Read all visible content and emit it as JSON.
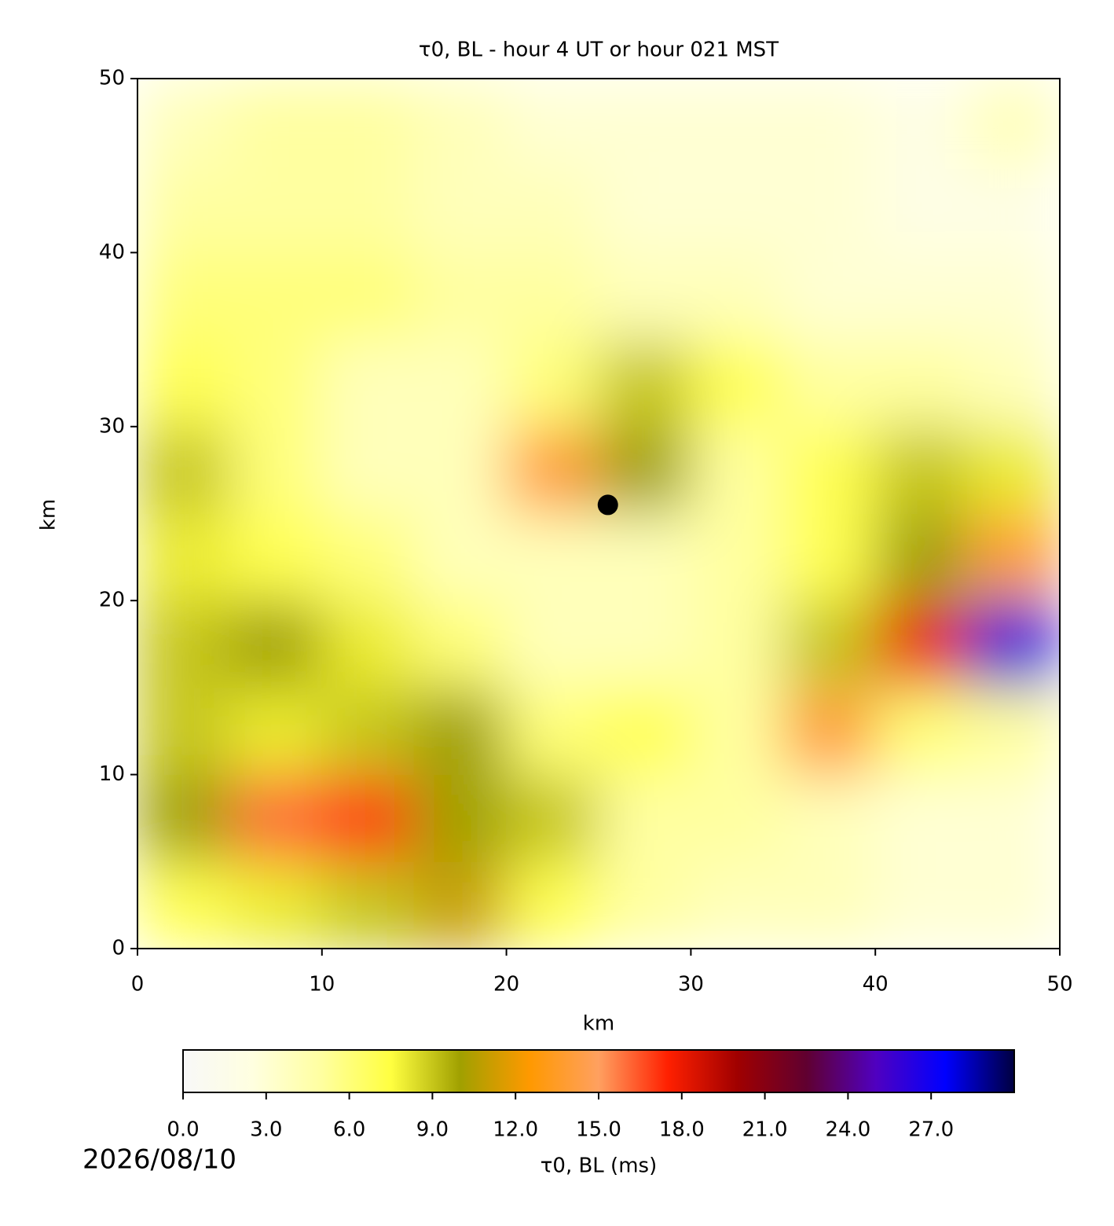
{
  "chart_data": {
    "type": "heatmap",
    "title": "τ0, BL - hour 4 UT or hour 021 MST",
    "x_label": "km",
    "y_label": "km",
    "xlim": [
      0,
      50
    ],
    "ylim": [
      0,
      50
    ],
    "xticks": [
      0,
      10,
      20,
      30,
      40,
      50
    ],
    "yticks": [
      0,
      10,
      20,
      30,
      40,
      50
    ],
    "x": [
      2.5,
      7.5,
      12.5,
      17.5,
      22.5,
      27.5,
      32.5,
      37.5,
      42.5,
      47.5
    ],
    "y": [
      2.5,
      7.5,
      12.5,
      17.5,
      22.5,
      27.5,
      32.5,
      37.5,
      42.5,
      47.5
    ],
    "z": [
      [
        7,
        8,
        9,
        11,
        7,
        5,
        4,
        4,
        3,
        3
      ],
      [
        10,
        16,
        17,
        10,
        9,
        5,
        5,
        4,
        3,
        3
      ],
      [
        9,
        8,
        9,
        10,
        6,
        7,
        5,
        14,
        6,
        5
      ],
      [
        9,
        10,
        8,
        6,
        4,
        4,
        5,
        9,
        18,
        26
      ],
      [
        8,
        7,
        6,
        4,
        4,
        4,
        5,
        7,
        10,
        14
      ],
      [
        9,
        6,
        4,
        4,
        14,
        10,
        5,
        7,
        9,
        8
      ],
      [
        7,
        6,
        4,
        4,
        6,
        9,
        7,
        5,
        5,
        4
      ],
      [
        6,
        6,
        6,
        5,
        5,
        4,
        4,
        3,
        3,
        3
      ],
      [
        5,
        5,
        5,
        4,
        4,
        3,
        3,
        3,
        2,
        2
      ],
      [
        4,
        5,
        5,
        4,
        3,
        3,
        3,
        3,
        2,
        4
      ]
    ],
    "colormap": [
      "#f8f8f8",
      "#ffffe0",
      "#ffffa0",
      "#ffff40",
      "#a0a000",
      "#ff9900",
      "#ffa060",
      "#ff2000",
      "#a00000",
      "#600030",
      "#5000c0",
      "#0000ff",
      "#000040"
    ],
    "clim": [
      0,
      30
    ],
    "colorbar_ticks": [
      {
        "value": 0,
        "label": "0.0"
      },
      {
        "value": 3,
        "label": "3.0"
      },
      {
        "value": 6,
        "label": "6.0"
      },
      {
        "value": 9,
        "label": "9.0"
      },
      {
        "value": 12,
        "label": "12.0"
      },
      {
        "value": 15,
        "label": "15.0"
      },
      {
        "value": 18,
        "label": "18.0"
      },
      {
        "value": 21,
        "label": "21.0"
      },
      {
        "value": 24,
        "label": "24.0"
      },
      {
        "value": 27,
        "label": "27.0"
      }
    ],
    "colorbar_label": "τ0, BL (ms)",
    "points": {
      "x": [
        25.5
      ],
      "y": [
        25.5
      ],
      "color": "#000000"
    },
    "date": "2026/08/10"
  }
}
